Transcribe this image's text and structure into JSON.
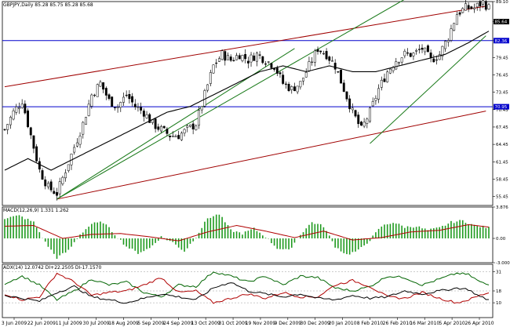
{
  "chart_data": [
    {
      "type": "candlestick",
      "header": "GBPJPY,Daily  85.28 85.75 85.28 85.68",
      "ylim": [
        53.91,
        89.1
      ],
      "y_ticks": [
        89.1,
        85.64,
        82.36,
        79.45,
        76.45,
        73.45,
        70.45,
        67.45,
        64.45,
        61.45,
        58.45,
        55.45
      ],
      "x_ticks": [
        "3 Jun 2009",
        "22 Jun 2009",
        "11 Jul 2009",
        "30 Jul 2009",
        "18 Aug 2009",
        "5 Sep 2009",
        "24 Sep 2009",
        "13 Oct 2009",
        "31 Oct 2009",
        "19 Nov 2009",
        "9 Dec 2009",
        "30 Dec 2009",
        "20 Jan 2010",
        "8 Feb 2010",
        "26 Feb 2010",
        "16 Mar 2010",
        "5 Apr 2010",
        "26 Apr 2010"
      ],
      "close_anchors": [
        [
          0,
          67
        ],
        [
          3,
          70
        ],
        [
          6,
          72
        ],
        [
          9,
          66
        ],
        [
          12,
          60
        ],
        [
          15,
          57
        ],
        [
          18,
          56
        ],
        [
          21,
          60
        ],
        [
          24,
          64
        ],
        [
          27,
          68
        ],
        [
          30,
          73
        ],
        [
          33,
          75
        ],
        [
          36,
          72
        ],
        [
          39,
          71
        ],
        [
          42,
          73
        ],
        [
          45,
          71
        ],
        [
          48,
          70
        ],
        [
          51,
          68
        ],
        [
          54,
          67
        ],
        [
          57,
          66
        ],
        [
          60,
          66
        ],
        [
          63,
          67
        ],
        [
          66,
          68
        ],
        [
          69,
          73
        ],
        [
          72,
          78
        ],
        [
          75,
          80
        ],
        [
          78,
          79
        ],
        [
          81,
          80
        ],
        [
          84,
          79
        ],
        [
          87,
          80
        ],
        [
          90,
          79
        ],
        [
          93,
          78
        ],
        [
          96,
          75
        ],
        [
          99,
          74
        ],
        [
          102,
          75
        ],
        [
          105,
          78
        ],
        [
          108,
          81
        ],
        [
          111,
          80
        ],
        [
          114,
          78
        ],
        [
          117,
          74
        ],
        [
          120,
          70
        ],
        [
          123,
          67
        ],
        [
          126,
          70
        ],
        [
          129,
          74
        ],
        [
          132,
          77
        ],
        [
          135,
          79
        ],
        [
          138,
          80
        ],
        [
          141,
          80
        ],
        [
          144,
          81
        ],
        [
          147,
          79
        ],
        [
          150,
          80
        ],
        [
          153,
          83
        ],
        [
          156,
          87
        ],
        [
          159,
          88
        ],
        [
          162,
          88
        ],
        [
          165,
          89
        ],
        [
          167,
          88
        ]
      ],
      "n_bars": 168,
      "sma_anchors": [
        [
          0,
          60
        ],
        [
          8,
          62
        ],
        [
          16,
          60
        ],
        [
          24,
          62
        ],
        [
          32,
          64
        ],
        [
          40,
          66
        ],
        [
          48,
          68
        ],
        [
          56,
          70
        ],
        [
          64,
          71
        ],
        [
          72,
          73
        ],
        [
          80,
          75
        ],
        [
          88,
          77
        ],
        [
          96,
          78
        ],
        [
          104,
          77
        ],
        [
          112,
          78
        ],
        [
          120,
          77
        ],
        [
          128,
          77
        ],
        [
          136,
          78
        ],
        [
          144,
          79
        ],
        [
          152,
          80
        ],
        [
          160,
          82
        ],
        [
          167,
          84
        ]
      ],
      "hlines": [
        {
          "value": 82.36,
          "tag": "82.36",
          "color": "#0000cc"
        },
        {
          "value": 70.95,
          "tag": "70.95",
          "color": "#0000cc"
        }
      ],
      "last_tag": {
        "value": 85.64,
        "text": "85.64"
      },
      "trendlines_red": [
        [
          [
            0,
            74.4
          ],
          [
            166,
            88.3
          ]
        ],
        [
          [
            18,
            55.0
          ],
          [
            166,
            70.2
          ]
        ]
      ],
      "trendlines_green": [
        [
          [
            18,
            55.0
          ],
          [
            100,
            81.0
          ]
        ],
        [
          [
            18,
            55.0
          ],
          [
            138,
            89.5
          ]
        ],
        [
          [
            126,
            64.6
          ],
          [
            166,
            83.2
          ]
        ]
      ]
    },
    {
      "type": "histogram",
      "header": "MACD(12,26,9) 1.331 1.262",
      "ylim": [
        -3.0,
        3.876
      ],
      "y_ticks": [
        3.876,
        0.0,
        -3.0
      ],
      "hist_anchors": [
        [
          0,
          2.5
        ],
        [
          5,
          2.8
        ],
        [
          10,
          2.0
        ],
        [
          14,
          -0.5
        ],
        [
          18,
          -2.4
        ],
        [
          22,
          -1.5
        ],
        [
          26,
          0.5
        ],
        [
          30,
          1.8
        ],
        [
          34,
          2.0
        ],
        [
          38,
          0.5
        ],
        [
          42,
          -1.0
        ],
        [
          46,
          -1.8
        ],
        [
          50,
          -1.2
        ],
        [
          54,
          0.2
        ],
        [
          58,
          -0.5
        ],
        [
          62,
          -1.6
        ],
        [
          66,
          0.2
        ],
        [
          70,
          2.5
        ],
        [
          74,
          3.0
        ],
        [
          78,
          1.0
        ],
        [
          82,
          0.6
        ],
        [
          86,
          1.2
        ],
        [
          90,
          0.2
        ],
        [
          94,
          -1.2
        ],
        [
          98,
          -1.5
        ],
        [
          102,
          0.5
        ],
        [
          106,
          2.0
        ],
        [
          110,
          1.5
        ],
        [
          114,
          -1.0
        ],
        [
          118,
          -2.0
        ],
        [
          122,
          -1.5
        ],
        [
          126,
          -0.2
        ],
        [
          130,
          1.5
        ],
        [
          134,
          2.0
        ],
        [
          138,
          1.4
        ],
        [
          142,
          1.5
        ],
        [
          146,
          1.0
        ],
        [
          150,
          1.3
        ],
        [
          154,
          2.0
        ],
        [
          158,
          2.2
        ],
        [
          162,
          1.6
        ],
        [
          167,
          1.3
        ]
      ],
      "signal_anchors": [
        [
          0,
          1.5
        ],
        [
          10,
          1.6
        ],
        [
          20,
          0.0
        ],
        [
          30,
          0.5
        ],
        [
          40,
          0.6
        ],
        [
          50,
          0.2
        ],
        [
          60,
          -0.3
        ],
        [
          70,
          0.8
        ],
        [
          80,
          1.6
        ],
        [
          90,
          0.9
        ],
        [
          100,
          0.1
        ],
        [
          110,
          0.9
        ],
        [
          120,
          -0.2
        ],
        [
          130,
          0.1
        ],
        [
          140,
          0.8
        ],
        [
          150,
          1.0
        ],
        [
          160,
          1.7
        ],
        [
          167,
          1.4
        ]
      ]
    },
    {
      "type": "line",
      "header": "ADX(14) 12.0742  DI+22.2505  DI-17.1570",
      "ylim": [
        0,
        36
      ],
      "y_ticks": [
        31,
        18,
        10
      ],
      "series": [
        {
          "name": "DI+",
          "color": "#006400",
          "anchors": [
            [
              0,
              23
            ],
            [
              6,
              28
            ],
            [
              12,
              22
            ],
            [
              18,
              12
            ],
            [
              24,
              18
            ],
            [
              30,
              26
            ],
            [
              36,
              22
            ],
            [
              42,
              24
            ],
            [
              48,
              17
            ],
            [
              54,
              14
            ],
            [
              60,
              22
            ],
            [
              66,
              21
            ],
            [
              72,
              31
            ],
            [
              78,
              28
            ],
            [
              84,
              24
            ],
            [
              90,
              28
            ],
            [
              96,
              22
            ],
            [
              102,
              28
            ],
            [
              108,
              27
            ],
            [
              114,
              20
            ],
            [
              120,
              18
            ],
            [
              126,
              21
            ],
            [
              132,
              28
            ],
            [
              138,
              27
            ],
            [
              144,
              22
            ],
            [
              150,
              26
            ],
            [
              156,
              30
            ],
            [
              160,
              29
            ],
            [
              164,
              24
            ],
            [
              167,
              22
            ]
          ]
        },
        {
          "name": "DI-",
          "color": "#b00000",
          "anchors": [
            [
              0,
              16
            ],
            [
              6,
              12
            ],
            [
              12,
              14
            ],
            [
              18,
              30
            ],
            [
              24,
              24
            ],
            [
              30,
              15
            ],
            [
              36,
              17
            ],
            [
              42,
              18
            ],
            [
              48,
              22
            ],
            [
              54,
              27
            ],
            [
              60,
              17
            ],
            [
              66,
              18
            ],
            [
              72,
              10
            ],
            [
              78,
              13
            ],
            [
              84,
              16
            ],
            [
              90,
              13
            ],
            [
              96,
              17
            ],
            [
              102,
              14
            ],
            [
              108,
              14
            ],
            [
              114,
              22
            ],
            [
              120,
              25
            ],
            [
              126,
              21
            ],
            [
              132,
              14
            ],
            [
              138,
              13
            ],
            [
              144,
              17
            ],
            [
              150,
              13
            ],
            [
              156,
              10
            ],
            [
              160,
              12
            ],
            [
              164,
              15
            ],
            [
              167,
              17
            ]
          ]
        },
        {
          "name": "ADX",
          "color": "#000000",
          "anchors": [
            [
              0,
              15
            ],
            [
              6,
              13
            ],
            [
              12,
              11
            ],
            [
              18,
              17
            ],
            [
              24,
              21
            ],
            [
              30,
              14
            ],
            [
              36,
              12
            ],
            [
              42,
              10
            ],
            [
              48,
              13
            ],
            [
              54,
              16
            ],
            [
              60,
              14
            ],
            [
              66,
              12
            ],
            [
              72,
              20
            ],
            [
              78,
              24
            ],
            [
              84,
              18
            ],
            [
              90,
              16
            ],
            [
              96,
              14
            ],
            [
              102,
              16
            ],
            [
              108,
              13
            ],
            [
              114,
              12
            ],
            [
              120,
              15
            ],
            [
              126,
              13
            ],
            [
              132,
              14
            ],
            [
              138,
              18
            ],
            [
              144,
              16
            ],
            [
              150,
              18
            ],
            [
              156,
              20
            ],
            [
              160,
              19
            ],
            [
              164,
              14
            ],
            [
              167,
              12
            ]
          ]
        }
      ]
    }
  ]
}
